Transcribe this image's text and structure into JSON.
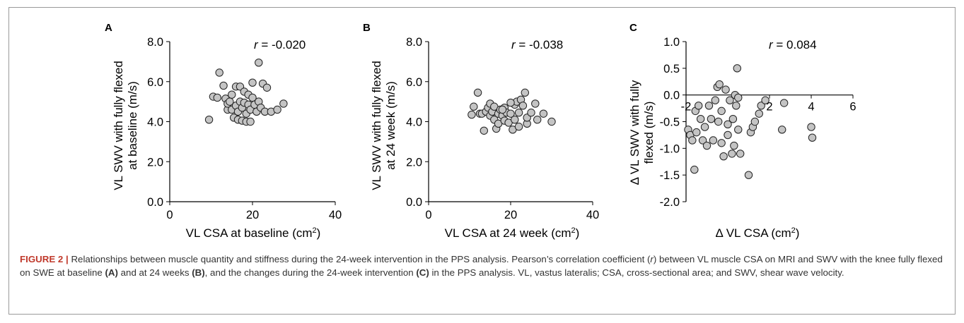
{
  "caption": {
    "label": "FIGURE 2 |",
    "text_1": " Relationships between muscle quantity and stiffness during the 24-week intervention in the PPS analysis. Pearson’s correlation coefficient (",
    "r": "r",
    "text_2": ") between VL muscle CSA on MRI and SWV with the knee fully flexed on SWE at baseline ",
    "ref_a": "(A)",
    "text_3": " and at 24 weeks ",
    "ref_b": "(B)",
    "text_4": ", and the changes during the 24-week intervention ",
    "ref_c": "(C)",
    "text_5": " in the PPS analysis. VL, vastus lateralis; CSA, cross-sectional area; and SWV, shear wave velocity."
  },
  "chart_data": [
    {
      "type": "scatter",
      "panel": "A",
      "r_label": "r",
      "r_value": " = -0.020",
      "ylabel_line1": "VL SWV with fully flexed",
      "ylabel_line2": "at baseline (m/s)",
      "xlabel": "VL CSA at baseline (cm",
      "xlabel_sup": "2",
      "xlabel_end": ")",
      "xlim": [
        0,
        40
      ],
      "ylim": [
        0,
        8
      ],
      "xticks": [
        0,
        20,
        40
      ],
      "yticks": [
        0,
        2,
        4,
        6,
        8
      ],
      "xtick_labels": [
        "0",
        "20",
        "40"
      ],
      "ytick_labels": [
        "0.0",
        "2.0",
        "4.0",
        "6.0",
        "8.0"
      ],
      "grid": false,
      "points": [
        [
          9.5,
          4.1
        ],
        [
          10.5,
          5.25
        ],
        [
          11.5,
          5.2
        ],
        [
          12,
          6.45
        ],
        [
          13,
          5.8
        ],
        [
          13.5,
          5.15
        ],
        [
          14,
          4.6
        ],
        [
          14,
          4.9
        ],
        [
          14.5,
          5.0
        ],
        [
          15,
          5.35
        ],
        [
          15,
          4.6
        ],
        [
          15.5,
          4.2
        ],
        [
          16,
          5.75
        ],
        [
          16,
          4.8
        ],
        [
          16.5,
          4.5
        ],
        [
          16.5,
          4.1
        ],
        [
          17,
          5.75
        ],
        [
          17,
          5.0
        ],
        [
          17.5,
          4.7
        ],
        [
          17.5,
          4.05
        ],
        [
          18,
          5.5
        ],
        [
          18,
          4.95
        ],
        [
          18.5,
          4.4
        ],
        [
          18.5,
          4.0
        ],
        [
          19,
          5.35
        ],
        [
          19,
          4.85
        ],
        [
          19.5,
          4.6
        ],
        [
          19.5,
          4.0
        ],
        [
          20,
          5.95
        ],
        [
          20,
          5.2
        ],
        [
          20.5,
          4.85
        ],
        [
          21,
          4.5
        ],
        [
          21.5,
          6.95
        ],
        [
          21.5,
          5.0
        ],
        [
          22,
          4.7
        ],
        [
          22.5,
          5.9
        ],
        [
          23,
          4.5
        ],
        [
          23.5,
          5.7
        ],
        [
          24.5,
          4.5
        ],
        [
          26,
          4.6
        ],
        [
          27.5,
          4.9
        ]
      ]
    },
    {
      "type": "scatter",
      "panel": "B",
      "r_label": "r",
      "r_value": " = -0.038",
      "ylabel_line1": "VL SWV with fully flexed",
      "ylabel_line2": "at 24 week (m/s)",
      "xlabel": "VL CSA at 24 week (cm",
      "xlabel_sup": "2",
      "xlabel_end": ")",
      "xlim": [
        0,
        40
      ],
      "ylim": [
        0,
        8
      ],
      "xticks": [
        0,
        20,
        40
      ],
      "yticks": [
        0,
        2,
        4,
        6,
        8
      ],
      "xtick_labels": [
        "0",
        "20",
        "40"
      ],
      "ytick_labels": [
        "0.0",
        "2.0",
        "4.0",
        "6.0",
        "8.0"
      ],
      "grid": false,
      "points": [
        [
          10.5,
          4.35
        ],
        [
          11,
          4.75
        ],
        [
          12,
          5.45
        ],
        [
          12.5,
          4.4
        ],
        [
          13,
          4.4
        ],
        [
          13.5,
          3.55
        ],
        [
          14,
          4.5
        ],
        [
          14.5,
          4.7
        ],
        [
          15,
          4.9
        ],
        [
          15,
          4.3
        ],
        [
          15.5,
          4.5
        ],
        [
          16,
          4.75
        ],
        [
          16,
          4.1
        ],
        [
          16.5,
          3.65
        ],
        [
          17,
          4.4
        ],
        [
          17,
          3.9
        ],
        [
          17.5,
          4.6
        ],
        [
          18,
          4.3
        ],
        [
          18.5,
          4.7
        ],
        [
          18.5,
          4.05
        ],
        [
          19,
          4.45
        ],
        [
          19.5,
          3.95
        ],
        [
          20,
          4.4
        ],
        [
          20.5,
          3.6
        ],
        [
          21,
          4.85
        ],
        [
          21,
          4.1
        ],
        [
          21.5,
          5.0
        ],
        [
          22,
          4.45
        ],
        [
          22,
          3.75
        ],
        [
          22.5,
          5.1
        ],
        [
          23,
          4.8
        ],
        [
          23.5,
          5.45
        ],
        [
          24,
          3.9
        ],
        [
          24,
          4.2
        ],
        [
          25,
          4.45
        ],
        [
          26,
          4.9
        ],
        [
          26.5,
          4.1
        ],
        [
          28,
          4.4
        ],
        [
          30,
          4.0
        ],
        [
          18,
          4.6
        ],
        [
          20,
          4.95
        ]
      ]
    },
    {
      "type": "scatter",
      "panel": "C",
      "r_label": "r",
      "r_value": " = 0.084",
      "ylabel_line1": "Δ VL SWV with fully",
      "ylabel_line2": "flexed (m/s)",
      "xlabel": "Δ VL CSA (cm",
      "xlabel_sup": "2",
      "xlabel_end": ")",
      "xlim": [
        -2,
        6
      ],
      "ylim": [
        -2,
        1
      ],
      "xticks": [
        -2,
        2,
        4,
        6
      ],
      "yticks": [
        -2,
        -1.5,
        -1,
        -0.5,
        0,
        0.5,
        1
      ],
      "xtick_labels": [
        "-2",
        "2",
        "4",
        "6"
      ],
      "ytick_labels": [
        "-2.0",
        "-1.5",
        "-1.0",
        "-0.5",
        "0.0",
        "0.5",
        "1.0"
      ],
      "grid": false,
      "points": [
        [
          -1.9,
          -0.65
        ],
        [
          -1.8,
          -0.75
        ],
        [
          -1.7,
          -0.85
        ],
        [
          -1.6,
          -1.4
        ],
        [
          -1.55,
          -0.3
        ],
        [
          -1.5,
          -0.7
        ],
        [
          -1.4,
          -0.2
        ],
        [
          -1.3,
          -0.45
        ],
        [
          -1.2,
          -0.85
        ],
        [
          -1.1,
          -0.6
        ],
        [
          -1.0,
          -0.95
        ],
        [
          -0.9,
          -0.2
        ],
        [
          -0.8,
          -0.45
        ],
        [
          -0.7,
          -0.85
        ],
        [
          -0.6,
          -0.1
        ],
        [
          -0.5,
          0.15
        ],
        [
          -0.45,
          -0.5
        ],
        [
          -0.4,
          0.2
        ],
        [
          -0.3,
          -0.3
        ],
        [
          -0.3,
          -0.9
        ],
        [
          -0.2,
          -1.15
        ],
        [
          -0.1,
          0.1
        ],
        [
          0.0,
          -0.55
        ],
        [
          0.0,
          -0.75
        ],
        [
          0.1,
          -0.1
        ],
        [
          0.2,
          -1.1
        ],
        [
          0.25,
          -0.45
        ],
        [
          0.3,
          -0.95
        ],
        [
          0.35,
          0.0
        ],
        [
          0.4,
          -0.2
        ],
        [
          0.45,
          0.5
        ],
        [
          0.5,
          -0.05
        ],
        [
          0.5,
          -0.65
        ],
        [
          0.6,
          -1.1
        ],
        [
          1.0,
          -1.5
        ],
        [
          1.1,
          -0.7
        ],
        [
          1.2,
          -0.6
        ],
        [
          1.3,
          -0.5
        ],
        [
          1.5,
          -0.35
        ],
        [
          1.6,
          -0.2
        ],
        [
          1.8,
          -0.1
        ],
        [
          2.6,
          -0.65
        ],
        [
          2.7,
          -0.15
        ],
        [
          4.0,
          -0.6
        ],
        [
          4.05,
          -0.8
        ]
      ]
    }
  ]
}
